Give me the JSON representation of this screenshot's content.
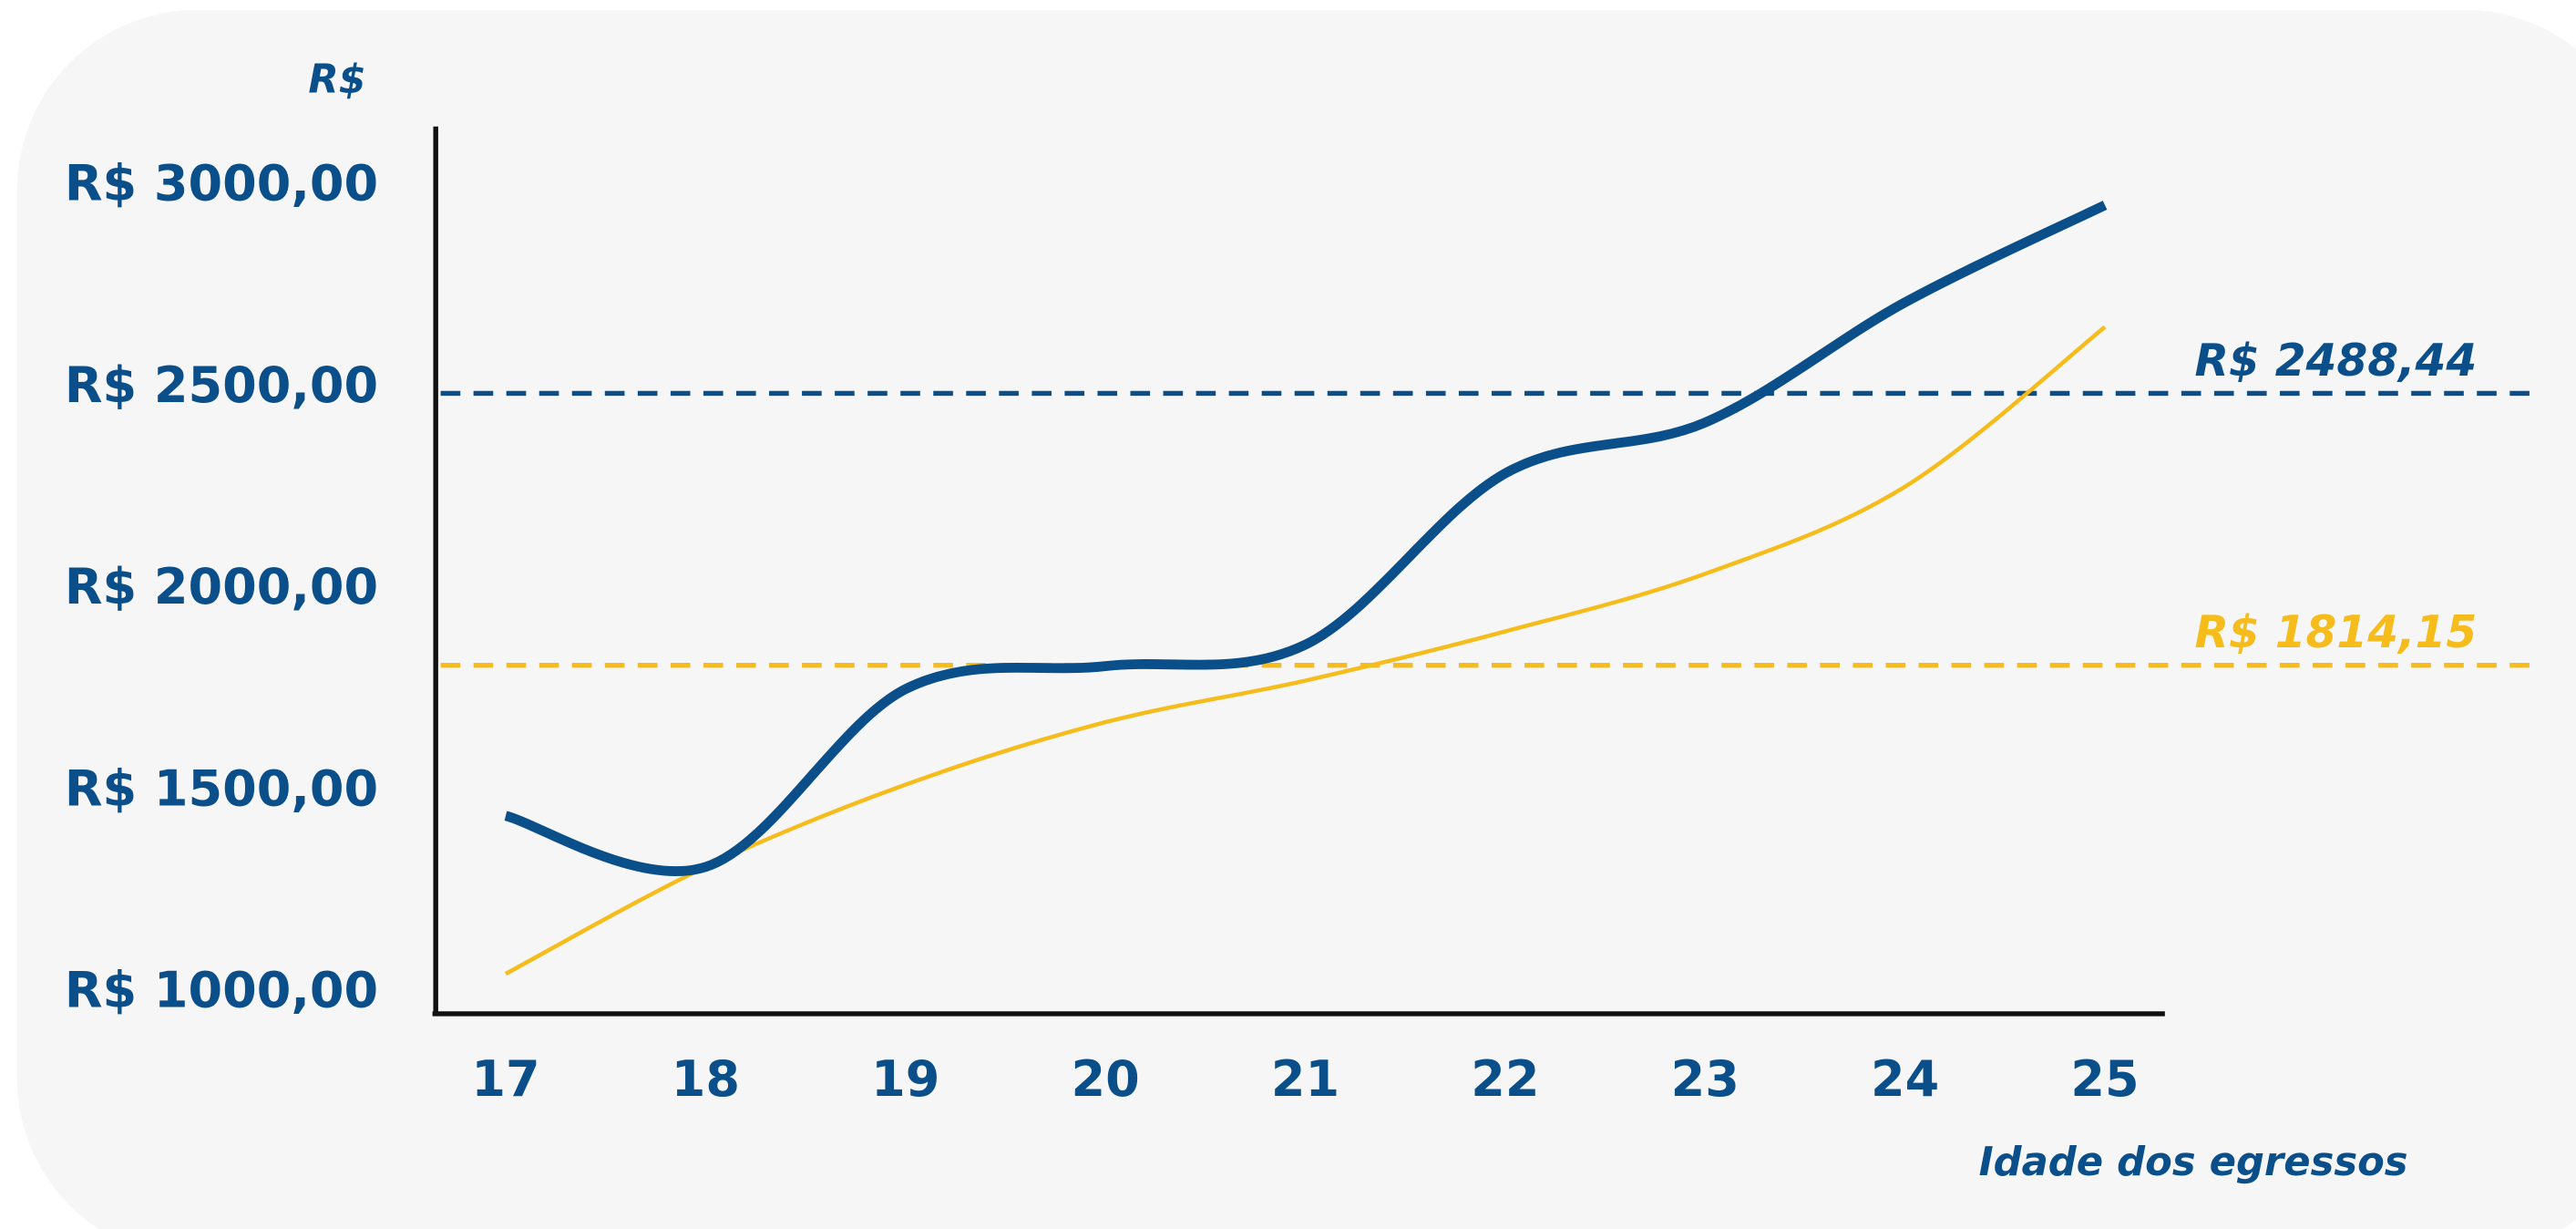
{
  "chart_data": {
    "type": "line",
    "y_label": "R$",
    "x_label": "Idade dos egressos",
    "x": [
      17,
      18,
      19,
      20,
      21,
      22,
      23,
      24,
      25
    ],
    "series": [
      {
        "color": "#0b4f8a",
        "values": [
          1441,
          1314,
          1755,
          1812,
          1865,
          2290,
          2416,
          2714,
          2955
        ]
      },
      {
        "color": "#f5bc1c",
        "values": [
          1049,
          1314,
          1518,
          1673,
          1776,
          1898,
          2041,
          2257,
          2653
        ]
      }
    ],
    "reference_lines": [
      {
        "value": 2488.44,
        "label": "R$ 2488,44",
        "color": "#0b4f8a"
      },
      {
        "value": 1814.15,
        "label": "R$ 1814,15",
        "color": "#f5bc1c"
      }
    ],
    "xlim": [
      16.65,
      25.3
    ],
    "xticks": [
      17,
      18,
      19,
      20,
      21,
      22,
      23,
      24,
      25
    ],
    "ylim": [
      950,
      3150
    ],
    "yticks": [
      {
        "value": 1000,
        "label": "R$ 1000,00"
      },
      {
        "value": 1500,
        "label": "R$ 1500,00"
      },
      {
        "value": 2000,
        "label": "R$ 2000,00"
      },
      {
        "value": 2500,
        "label": "R$ 2500,00"
      },
      {
        "value": 3000,
        "label": "R$ 3000,00"
      }
    ]
  }
}
